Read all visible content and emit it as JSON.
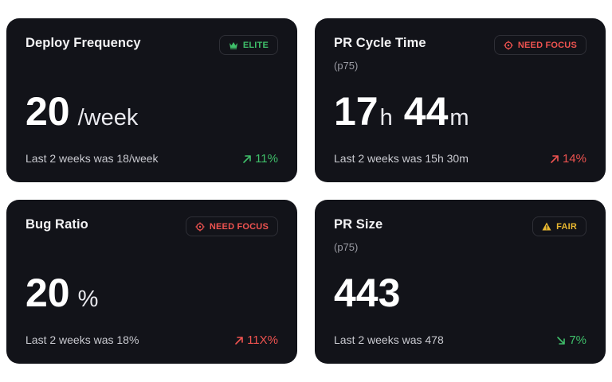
{
  "cards": [
    {
      "title": "Deploy Frequency",
      "subtitle": "",
      "badge": {
        "label": "ELITE",
        "icon": "crown-icon",
        "color": "#3fbf6a"
      },
      "value": {
        "number": "20",
        "unit": "/week"
      },
      "footer": "Last 2 weeks was 18/week",
      "delta": {
        "text": "11%",
        "direction": "up",
        "color": "#3fbf6a"
      }
    },
    {
      "title": "PR Cycle Time",
      "subtitle": "(p75)",
      "badge": {
        "label": "NEED FOCUS",
        "icon": "target-icon",
        "color": "#ef5350"
      },
      "value": {
        "hours": "17",
        "hours_unit": "h",
        "minutes": "44",
        "minutes_unit": "m"
      },
      "footer": "Last 2 weeks was 15h 30m",
      "delta": {
        "text": "14%",
        "direction": "up",
        "color": "#ef5350"
      }
    },
    {
      "title": "Bug Ratio",
      "subtitle": "",
      "badge": {
        "label": "NEED FOCUS",
        "icon": "target-icon",
        "color": "#ef5350"
      },
      "value": {
        "number": "20",
        "unit": "%"
      },
      "footer": "Last 2 weeks was 18%",
      "delta": {
        "text": "11X%",
        "direction": "up",
        "color": "#ef5350"
      }
    },
    {
      "title": "PR Size",
      "subtitle": "(p75)",
      "badge": {
        "label": "FAIR",
        "icon": "warning-icon",
        "color": "#e8b730"
      },
      "value": {
        "number": "443",
        "unit": ""
      },
      "footer": "Last 2 weeks was 478",
      "delta": {
        "text": "7%",
        "direction": "down",
        "color": "#3fbf6a"
      }
    }
  ]
}
